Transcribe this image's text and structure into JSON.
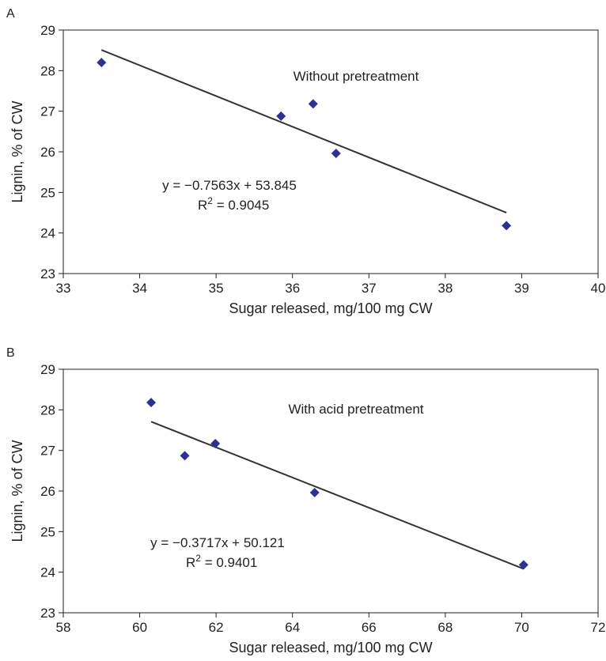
{
  "chart_data": [
    {
      "panel_label": "A",
      "type": "scatter",
      "xlabel": "Sugar released, mg/100 mg CW",
      "ylabel": "Lignin, % of CW",
      "xlim": [
        33,
        40
      ],
      "ylim": [
        23,
        29
      ],
      "xticks": [
        33,
        34,
        35,
        36,
        37,
        38,
        39,
        40
      ],
      "yticks": [
        23,
        24,
        25,
        26,
        27,
        28,
        29
      ],
      "grid": false,
      "annotation": "Without pretreatment",
      "equation": "y = −0.7563x + 53.845",
      "r2_label": "R",
      "r2_sup": "2",
      "r2_value": " = 0.9045",
      "marker_color": "#2e3192",
      "line_color": "#333333",
      "points": [
        {
          "x": 33.5,
          "y": 28.2
        },
        {
          "x": 35.85,
          "y": 26.88
        },
        {
          "x": 36.27,
          "y": 27.18
        },
        {
          "x": 36.57,
          "y": 25.96
        },
        {
          "x": 38.8,
          "y": 24.18
        }
      ],
      "trendline": {
        "slope": -0.7563,
        "intercept": 53.845,
        "x_start": 33.5,
        "x_end": 38.8
      }
    },
    {
      "panel_label": "B",
      "type": "scatter",
      "xlabel": "Sugar released, mg/100 mg CW",
      "ylabel": "Lignin, % of CW",
      "xlim": [
        58,
        72
      ],
      "ylim": [
        23,
        29
      ],
      "xticks": [
        58,
        60,
        62,
        64,
        66,
        68,
        70,
        72
      ],
      "yticks": [
        23,
        24,
        25,
        26,
        27,
        28,
        29
      ],
      "grid": false,
      "annotation": "With acid pretreatment",
      "equation": "y = −0.3717x + 50.121",
      "r2_label": "R",
      "r2_sup": "2",
      "r2_value": " = 0.9401",
      "marker_color": "#2e3192",
      "line_color": "#333333",
      "points": [
        {
          "x": 60.3,
          "y": 28.18
        },
        {
          "x": 61.18,
          "y": 26.87
        },
        {
          "x": 61.98,
          "y": 27.17
        },
        {
          "x": 64.58,
          "y": 25.96
        },
        {
          "x": 70.05,
          "y": 24.18
        }
      ],
      "trendline": {
        "slope": -0.3717,
        "intercept": 50.121,
        "x_start": 60.3,
        "x_end": 70.05
      }
    }
  ]
}
